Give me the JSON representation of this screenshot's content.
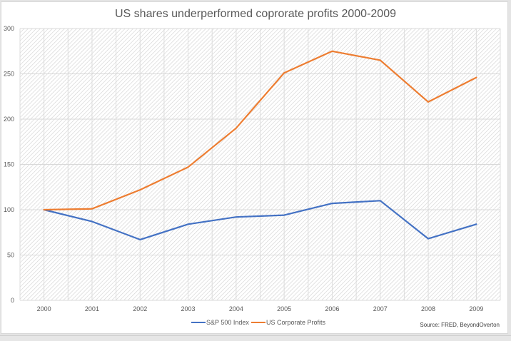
{
  "chart_data": {
    "type": "line",
    "title": "US shares underperformed coprorate profits 2000-2009",
    "xlabel": "",
    "ylabel": "",
    "categories": [
      "2000",
      "2001",
      "2002",
      "2003",
      "2004",
      "2005",
      "2006",
      "2007",
      "2008",
      "2009"
    ],
    "ylim": [
      0,
      300
    ],
    "yticks": [
      0,
      50,
      100,
      150,
      200,
      250,
      300
    ],
    "ytick_labels": [
      "0",
      "50",
      "100",
      "150",
      "200",
      "250",
      "300"
    ],
    "grid": true,
    "plot_background": "diagonal-hatch",
    "legend_position": "bottom",
    "series": [
      {
        "name": "S&P 500 Index",
        "color": "#4472c4",
        "values": [
          100,
          87,
          67,
          84,
          92,
          94,
          107,
          110,
          68,
          84
        ]
      },
      {
        "name": "US Corporate Profits",
        "color": "#ed7d31",
        "values": [
          100,
          101,
          122,
          147,
          190,
          251,
          275,
          265,
          219,
          246
        ]
      }
    ],
    "annotations": [
      "Source: FRED, BeyondOverton"
    ]
  }
}
